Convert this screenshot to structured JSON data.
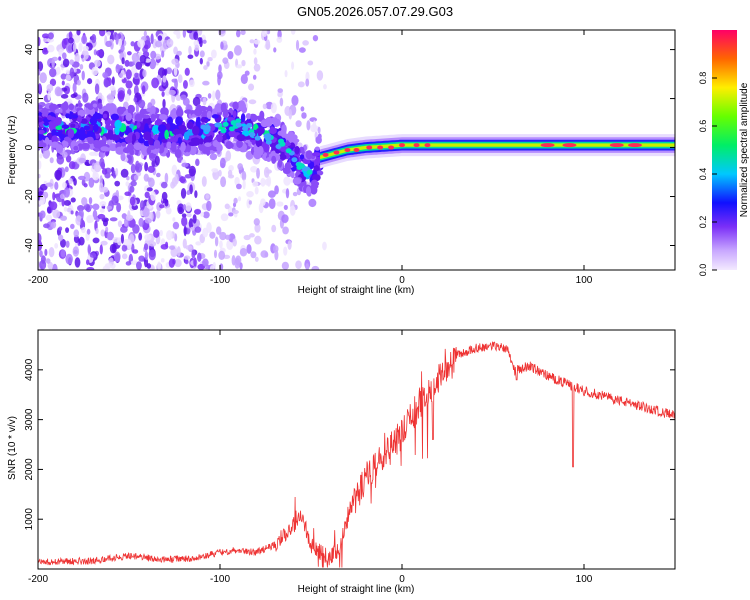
{
  "figure_title": "GN05.2026.057.07.29.G03",
  "colors": {
    "snr_line": "#ee3333",
    "spectral_base": "#7b2ff7",
    "background": "#ffffff"
  },
  "chart_data": [
    {
      "type": "heatmap",
      "title": "GN05.2026.057.07.29.G03",
      "xlabel": "Height of straight line (km)",
      "ylabel": "Frequency (Hz)",
      "xlim": [
        -200,
        150
      ],
      "ylim": [
        -50,
        48
      ],
      "xticks": [
        -200,
        -100,
        0,
        100
      ],
      "yticks": [
        -40,
        -20,
        0,
        20,
        40
      ],
      "colorbar": {
        "label": "Normalized spectral amplitude",
        "range": [
          0,
          1
        ],
        "ticks": [
          0.0,
          0.2,
          0.4,
          0.6,
          0.8
        ]
      },
      "ridge": [
        {
          "x": -200,
          "y": 8
        },
        {
          "x": -170,
          "y": 9
        },
        {
          "x": -150,
          "y": 7
        },
        {
          "x": -120,
          "y": 6
        },
        {
          "x": -100,
          "y": 8
        },
        {
          "x": -90,
          "y": 9
        },
        {
          "x": -80,
          "y": 6
        },
        {
          "x": -70,
          "y": 3
        },
        {
          "x": -60,
          "y": -3
        },
        {
          "x": -50,
          "y": -12
        },
        {
          "x": -45,
          "y": -4
        },
        {
          "x": -40,
          "y": -3
        },
        {
          "x": -30,
          "y": -1
        },
        {
          "x": -20,
          "y": 0
        },
        {
          "x": 0,
          "y": 1
        },
        {
          "x": 50,
          "y": 1
        },
        {
          "x": 100,
          "y": 1
        },
        {
          "x": 150,
          "y": 1
        }
      ]
    },
    {
      "type": "line",
      "xlabel": "Height of straight line (km)",
      "ylabel": "SNR (10 * v/v)",
      "xlim": [
        -200,
        150
      ],
      "ylim": [
        0,
        4800
      ],
      "xticks": [
        -200,
        -100,
        0,
        100
      ],
      "yticks": [
        1000,
        2000,
        3000,
        4000
      ],
      "envelope": [
        {
          "x": -200,
          "y": 150
        },
        {
          "x": -170,
          "y": 180
        },
        {
          "x": -150,
          "y": 280
        },
        {
          "x": -130,
          "y": 200
        },
        {
          "x": -110,
          "y": 250
        },
        {
          "x": -100,
          "y": 350
        },
        {
          "x": -90,
          "y": 400
        },
        {
          "x": -80,
          "y": 350
        },
        {
          "x": -70,
          "y": 500
        },
        {
          "x": -60,
          "y": 900
        },
        {
          "x": -55,
          "y": 1100
        },
        {
          "x": -50,
          "y": 500
        },
        {
          "x": -40,
          "y": 250
        },
        {
          "x": -35,
          "y": 400
        },
        {
          "x": -30,
          "y": 1100
        },
        {
          "x": -20,
          "y": 1900
        },
        {
          "x": -10,
          "y": 2300
        },
        {
          "x": 0,
          "y": 2800
        },
        {
          "x": 10,
          "y": 3400
        },
        {
          "x": 20,
          "y": 3900
        },
        {
          "x": 30,
          "y": 4300
        },
        {
          "x": 40,
          "y": 4450
        },
        {
          "x": 50,
          "y": 4500
        },
        {
          "x": 58,
          "y": 4450
        },
        {
          "x": 62,
          "y": 4000
        },
        {
          "x": 70,
          "y": 4100
        },
        {
          "x": 80,
          "y": 3900
        },
        {
          "x": 90,
          "y": 3750
        },
        {
          "x": 100,
          "y": 3600
        },
        {
          "x": 110,
          "y": 3500
        },
        {
          "x": 120,
          "y": 3400
        },
        {
          "x": 130,
          "y": 3300
        },
        {
          "x": 140,
          "y": 3200
        },
        {
          "x": 150,
          "y": 3100
        }
      ],
      "notable_dips": [
        {
          "x": 17,
          "y": 2600
        },
        {
          "x": 63,
          "y": 3800
        },
        {
          "x": 94,
          "y": 2050
        }
      ]
    }
  ]
}
